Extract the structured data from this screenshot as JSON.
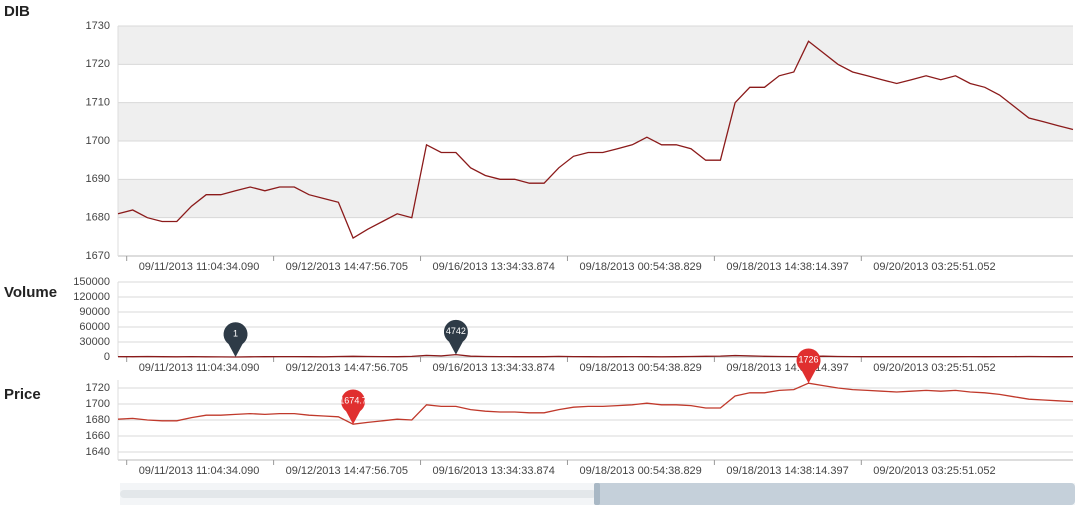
{
  "chart_data": [
    {
      "type": "line",
      "title": "DIB",
      "color": "#8b1a1a",
      "grid": "bands",
      "ylim": [
        1670,
        1730
      ],
      "yticks": [
        1670,
        1680,
        1690,
        1700,
        1710,
        1720,
        1730
      ],
      "categories": [
        null,
        "09/11/2013 11:04:34.090",
        null,
        null,
        null,
        null,
        null,
        null,
        null,
        null,
        null,
        "09/12/2013 14:47:56.705",
        null,
        null,
        null,
        null,
        null,
        null,
        null,
        null,
        null,
        "09/16/2013 13:34:33.874",
        null,
        null,
        null,
        null,
        null,
        null,
        null,
        null,
        null,
        "09/18/2013 00:54:38.829",
        null,
        null,
        null,
        null,
        null,
        null,
        null,
        null,
        null,
        "09/18/2013 14:38:14.397",
        null,
        null,
        null,
        null,
        null,
        null,
        null,
        null,
        null,
        "09/20/2013 03:25:51.052",
        null,
        null,
        null,
        null,
        null,
        null,
        null,
        null,
        null,
        null,
        null,
        null,
        null,
        null
      ],
      "values": [
        1681,
        1682,
        1680,
        1679,
        1679,
        1683,
        1686,
        1686,
        1687,
        1688,
        1687,
        1688,
        1688,
        1686,
        1685,
        1684,
        1674.7,
        1677,
        1679,
        1681,
        1680,
        1699,
        1697,
        1697,
        1693,
        1691,
        1690,
        1690,
        1689,
        1689,
        1693,
        1696,
        1697,
        1697,
        1698,
        1699,
        1701,
        1699,
        1699,
        1698,
        1695,
        1695,
        1710,
        1714,
        1714,
        1717,
        1718,
        1726,
        1723,
        1720,
        1718,
        1717,
        1716,
        1715,
        1716,
        1717,
        1716,
        1717,
        1715,
        1714,
        1712,
        1709,
        1706,
        1705,
        1704,
        1703
      ]
    },
    {
      "type": "line",
      "title": "Volume",
      "color": "#8b1a1a",
      "grid": "lines",
      "pin_color": "#2e3b47",
      "ylim": [
        0,
        150000
      ],
      "yticks": [
        0,
        30000,
        60000,
        90000,
        120000,
        150000
      ],
      "categories": [
        null,
        "09/11/2013 11:04:34.090",
        null,
        null,
        null,
        null,
        null,
        null,
        null,
        null,
        null,
        "09/12/2013 14:47:56.705",
        null,
        null,
        null,
        null,
        null,
        null,
        null,
        null,
        null,
        "09/16/2013 13:34:33.874",
        null,
        null,
        null,
        null,
        null,
        null,
        null,
        null,
        null,
        "09/18/2013 00:54:38.829",
        null,
        null,
        null,
        null,
        null,
        null,
        null,
        null,
        null,
        "09/18/2013 14:38:14.397",
        null,
        null,
        null,
        null,
        null,
        null,
        null,
        null,
        null,
        "09/20/2013 03:25:51.052",
        null,
        null,
        null,
        null,
        null,
        null,
        null,
        null,
        null,
        null,
        null,
        null,
        null,
        null
      ],
      "values": [
        820,
        640,
        910,
        530,
        470,
        760,
        380,
        290,
        1,
        450,
        610,
        720,
        880,
        540,
        390,
        1020,
        1310,
        960,
        700,
        580,
        1240,
        3180,
        2270,
        4742,
        1650,
        980,
        760,
        640,
        520,
        690,
        1130,
        870,
        590,
        480,
        610,
        740,
        530,
        460,
        580,
        920,
        1450,
        1760,
        2980,
        2110,
        1340,
        1020,
        880,
        1270,
        1540,
        960,
        720,
        640,
        580,
        510,
        690,
        620,
        570,
        660,
        810,
        590,
        700,
        880,
        940,
        760,
        650,
        720
      ]
    },
    {
      "type": "line",
      "title": "Price",
      "color": "#c0392b",
      "grid": "lines",
      "pin_color": "#e02f2f",
      "ylim": [
        1630,
        1730
      ],
      "yticks": [
        1640,
        1660,
        1680,
        1700,
        1720
      ],
      "categories": [
        null,
        "09/11/2013 11:04:34.090",
        null,
        null,
        null,
        null,
        null,
        null,
        null,
        null,
        null,
        "09/12/2013 14:47:56.705",
        null,
        null,
        null,
        null,
        null,
        null,
        null,
        null,
        null,
        "09/16/2013 13:34:33.874",
        null,
        null,
        null,
        null,
        null,
        null,
        null,
        null,
        null,
        "09/18/2013 00:54:38.829",
        null,
        null,
        null,
        null,
        null,
        null,
        null,
        null,
        null,
        "09/18/2013 14:38:14.397",
        null,
        null,
        null,
        null,
        null,
        null,
        null,
        null,
        null,
        "09/20/2013 03:25:51.052",
        null,
        null,
        null,
        null,
        null,
        null,
        null,
        null,
        null,
        null,
        null,
        null,
        null,
        null
      ],
      "values": [
        1681,
        1682,
        1680,
        1679,
        1679,
        1683,
        1686,
        1686,
        1687,
        1688,
        1687,
        1688,
        1688,
        1686,
        1685,
        1684,
        1674.7,
        1677,
        1679,
        1681,
        1680,
        1699,
        1697,
        1697,
        1693,
        1691,
        1690,
        1690,
        1689,
        1689,
        1693,
        1696,
        1697,
        1697,
        1698,
        1699,
        1701,
        1699,
        1699,
        1698,
        1695,
        1695,
        1710,
        1714,
        1714,
        1717,
        1718,
        1726,
        1723,
        1720,
        1718,
        1717,
        1716,
        1715,
        1716,
        1717,
        1716,
        1717,
        1715,
        1714,
        1712,
        1709,
        1706,
        1705,
        1704,
        1703
      ]
    }
  ]
}
